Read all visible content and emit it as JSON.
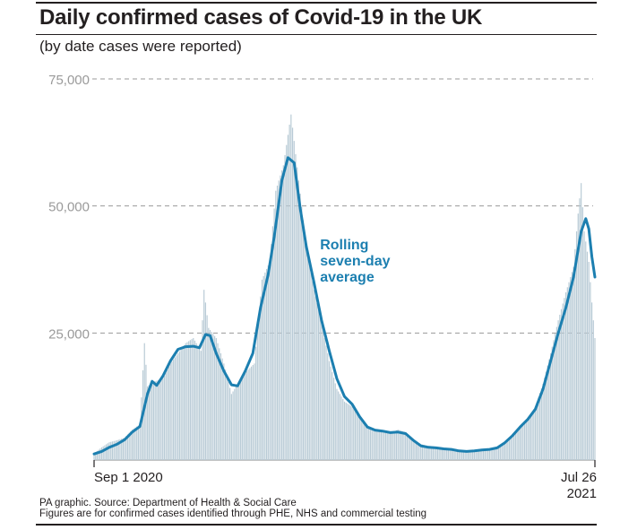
{
  "title": "Daily confirmed cases of Covid-19 in the UK",
  "subtitle": "(by date cases were reported)",
  "source_line1": "PA graphic. Source: Department of Health & Social Care",
  "source_line2": "Figures are for confirmed cases identified through PHE, NHS and commercial testing",
  "colors": {
    "bars": "#b9cbd6",
    "line": "#1c7fb0",
    "grid": "#9a9a9a",
    "ticklabel": "#9a9a9a",
    "text": "#231f20"
  },
  "chart_data": {
    "type": "bar",
    "xlabel": "",
    "ylabel": "",
    "ylim": [
      0,
      75000
    ],
    "grid": true,
    "yticks": [
      {
        "value": 25000,
        "label": "25,000"
      },
      {
        "value": 50000,
        "label": "50,000"
      },
      {
        "value": 75000,
        "label": "75,000"
      }
    ],
    "xrange": [
      "2020-09-01",
      "2021-07-26"
    ],
    "xticks": [
      {
        "date": "2020-09-01",
        "label": "Sep 1 2020",
        "anchor": "start"
      },
      {
        "date": "2021-07-26",
        "label": "Jul 26",
        "label2": "2021",
        "anchor": "end"
      }
    ],
    "series": [
      {
        "type": "bar",
        "points": [
          [
            "2020-09-01",
            1300
          ],
          [
            "2020-09-06",
            2500
          ],
          [
            "2020-09-11",
            3500
          ],
          [
            "2020-09-16",
            3900
          ],
          [
            "2020-09-21",
            4400
          ],
          [
            "2020-09-26",
            6000
          ],
          [
            "2020-10-01",
            7000
          ],
          [
            "2020-10-04",
            23000
          ],
          [
            "2020-10-06",
            14500
          ],
          [
            "2020-10-11",
            15500
          ],
          [
            "2020-10-16",
            16000
          ],
          [
            "2020-10-21",
            19000
          ],
          [
            "2020-10-26",
            21000
          ],
          [
            "2020-10-31",
            23000
          ],
          [
            "2020-11-05",
            24000
          ],
          [
            "2020-11-10",
            21500
          ],
          [
            "2020-11-12",
            33500
          ],
          [
            "2020-11-15",
            26000
          ],
          [
            "2020-11-20",
            24000
          ],
          [
            "2020-11-25",
            19000
          ],
          [
            "2020-11-30",
            13000
          ],
          [
            "2020-12-05",
            15500
          ],
          [
            "2020-12-10",
            17500
          ],
          [
            "2020-12-15",
            19000
          ],
          [
            "2020-12-20",
            35500
          ],
          [
            "2020-12-25",
            39000
          ],
          [
            "2020-12-29",
            53000
          ],
          [
            "2021-01-03",
            58000
          ],
          [
            "2021-01-08",
            68000
          ],
          [
            "2021-01-13",
            55000
          ],
          [
            "2021-01-18",
            42000
          ],
          [
            "2021-01-23",
            33500
          ],
          [
            "2021-01-28",
            27000
          ],
          [
            "2021-02-02",
            19500
          ],
          [
            "2021-02-07",
            14000
          ],
          [
            "2021-02-12",
            11500
          ],
          [
            "2021-02-17",
            10500
          ],
          [
            "2021-02-22",
            8500
          ],
          [
            "2021-02-27",
            6500
          ],
          [
            "2021-03-04",
            6000
          ],
          [
            "2021-03-09",
            5700
          ],
          [
            "2021-03-14",
            5300
          ],
          [
            "2021-03-19",
            6000
          ],
          [
            "2021-03-24",
            5500
          ],
          [
            "2021-03-29",
            4200
          ],
          [
            "2021-04-03",
            3100
          ],
          [
            "2021-04-08",
            2800
          ],
          [
            "2021-04-13",
            2600
          ],
          [
            "2021-04-18",
            2400
          ],
          [
            "2021-04-23",
            2200
          ],
          [
            "2021-04-28",
            1900
          ],
          [
            "2021-05-03",
            1700
          ],
          [
            "2021-05-08",
            2000
          ],
          [
            "2021-05-13",
            2200
          ],
          [
            "2021-05-18",
            2300
          ],
          [
            "2021-05-23",
            2400
          ],
          [
            "2021-05-28",
            3500
          ],
          [
            "2021-06-02",
            4500
          ],
          [
            "2021-06-07",
            6500
          ],
          [
            "2021-06-12",
            8000
          ],
          [
            "2021-06-17",
            10500
          ],
          [
            "2021-06-22",
            15000
          ],
          [
            "2021-06-27",
            21000
          ],
          [
            "2021-07-02",
            27500
          ],
          [
            "2021-07-07",
            33000
          ],
          [
            "2021-07-12",
            38000
          ],
          [
            "2021-07-15",
            48500
          ],
          [
            "2021-07-17",
            54500
          ],
          [
            "2021-07-19",
            45000
          ],
          [
            "2021-07-22",
            39000
          ],
          [
            "2021-07-24",
            31000
          ],
          [
            "2021-07-26",
            24000
          ]
        ]
      },
      {
        "type": "line",
        "name": "Rolling seven-day average",
        "points": [
          [
            "2020-09-01",
            1200
          ],
          [
            "2020-09-06",
            1700
          ],
          [
            "2020-09-11",
            2500
          ],
          [
            "2020-09-16",
            3100
          ],
          [
            "2020-09-21",
            4000
          ],
          [
            "2020-09-26",
            5500
          ],
          [
            "2020-10-01",
            6600
          ],
          [
            "2020-10-06",
            13000
          ],
          [
            "2020-10-09",
            15500
          ],
          [
            "2020-10-12",
            14700
          ],
          [
            "2020-10-16",
            16500
          ],
          [
            "2020-10-21",
            19500
          ],
          [
            "2020-10-26",
            21800
          ],
          [
            "2020-10-31",
            22300
          ],
          [
            "2020-11-05",
            22400
          ],
          [
            "2020-11-09",
            22100
          ],
          [
            "2020-11-13",
            24700
          ],
          [
            "2020-11-16",
            24500
          ],
          [
            "2020-11-20",
            21000
          ],
          [
            "2020-11-25",
            17500
          ],
          [
            "2020-11-30",
            14800
          ],
          [
            "2020-12-04",
            14600
          ],
          [
            "2020-12-09",
            17500
          ],
          [
            "2020-12-14",
            21000
          ],
          [
            "2020-12-19",
            30000
          ],
          [
            "2020-12-24",
            36500
          ],
          [
            "2020-12-28",
            44000
          ],
          [
            "2021-01-02",
            55000
          ],
          [
            "2021-01-06",
            59500
          ],
          [
            "2021-01-10",
            58500
          ],
          [
            "2021-01-14",
            49500
          ],
          [
            "2021-01-18",
            42000
          ],
          [
            "2021-01-23",
            35000
          ],
          [
            "2021-01-28",
            27500
          ],
          [
            "2021-02-02",
            21500
          ],
          [
            "2021-02-07",
            16000
          ],
          [
            "2021-02-12",
            12500
          ],
          [
            "2021-02-17",
            11000
          ],
          [
            "2021-02-22",
            8500
          ],
          [
            "2021-02-27",
            6500
          ],
          [
            "2021-03-04",
            5900
          ],
          [
            "2021-03-09",
            5700
          ],
          [
            "2021-03-14",
            5400
          ],
          [
            "2021-03-19",
            5500
          ],
          [
            "2021-03-24",
            5200
          ],
          [
            "2021-03-29",
            3900
          ],
          [
            "2021-04-03",
            2800
          ],
          [
            "2021-04-08",
            2500
          ],
          [
            "2021-04-13",
            2400
          ],
          [
            "2021-04-18",
            2200
          ],
          [
            "2021-04-23",
            2100
          ],
          [
            "2021-04-28",
            1800
          ],
          [
            "2021-05-03",
            1700
          ],
          [
            "2021-05-08",
            1800
          ],
          [
            "2021-05-13",
            2000
          ],
          [
            "2021-05-18",
            2100
          ],
          [
            "2021-05-23",
            2400
          ],
          [
            "2021-05-28",
            3400
          ],
          [
            "2021-06-02",
            4800
          ],
          [
            "2021-06-07",
            6500
          ],
          [
            "2021-06-12",
            8000
          ],
          [
            "2021-06-17",
            10000
          ],
          [
            "2021-06-22",
            14000
          ],
          [
            "2021-06-27",
            19500
          ],
          [
            "2021-07-02",
            25000
          ],
          [
            "2021-07-07",
            30000
          ],
          [
            "2021-07-12",
            36000
          ],
          [
            "2021-07-17",
            45000
          ],
          [
            "2021-07-20",
            47500
          ],
          [
            "2021-07-22",
            45500
          ],
          [
            "2021-07-24",
            40000
          ],
          [
            "2021-07-26",
            36000
          ]
        ]
      }
    ],
    "annotations": [
      {
        "lines": [
          "Rolling",
          "seven-day",
          "average"
        ],
        "date": "2021-01-27",
        "value": 41500
      }
    ]
  }
}
